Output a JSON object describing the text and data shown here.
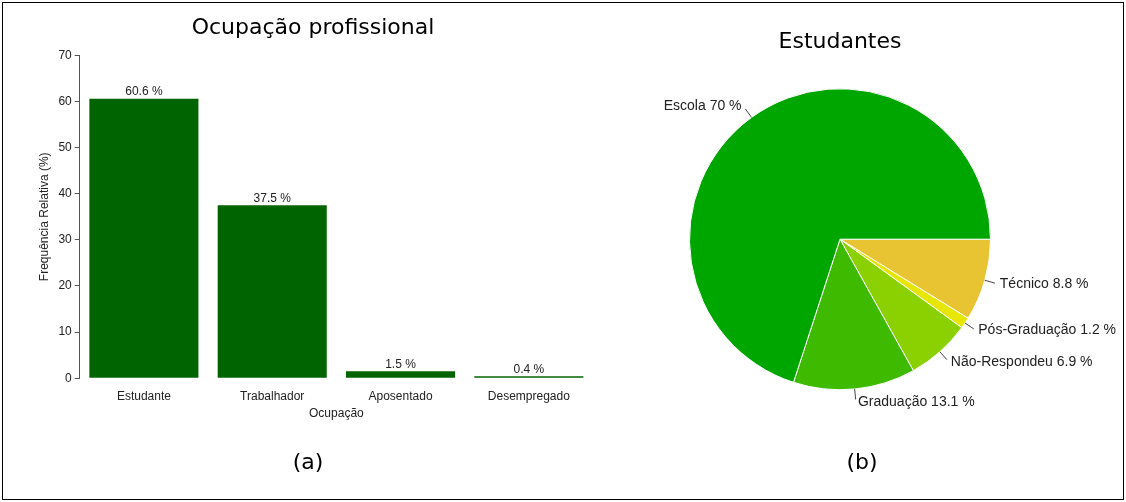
{
  "chart_data": [
    {
      "type": "bar",
      "title": "Ocupação profissional",
      "xlabel": "Ocupação",
      "ylabel": "Frequência Relativa (%)",
      "categories": [
        "Estudante",
        "Trabalhador",
        "Aposentado",
        "Desempregado"
      ],
      "values": [
        60.6,
        37.5,
        1.5,
        0.4
      ],
      "color": "#006400",
      "value_labels": [
        "60.6 %",
        "37.5 %",
        "1.5 %",
        "0.4 %"
      ],
      "ylim": [
        0,
        70
      ],
      "yticks": [
        0,
        10,
        20,
        30,
        40,
        50,
        60,
        70
      ],
      "legend": false,
      "annotations": [
        "(a)"
      ]
    },
    {
      "type": "pie",
      "title": "Estudantes",
      "categories": [
        "Técnico",
        "Pós-Graduação",
        "Não-Respondeu",
        "Graduação",
        "Escola"
      ],
      "values": [
        8.8,
        1.2,
        6.9,
        13.1,
        70
      ],
      "value_labels": [
        "8.8 %",
        "1.2 %",
        "6.9 %",
        "13.1 %",
        "70 %"
      ],
      "colors": [
        "#e8c332",
        "#e6e600",
        "#8bd000",
        "#3ebb00",
        "#00a600"
      ],
      "legend": false,
      "annotations": [
        "(b)"
      ]
    }
  ]
}
